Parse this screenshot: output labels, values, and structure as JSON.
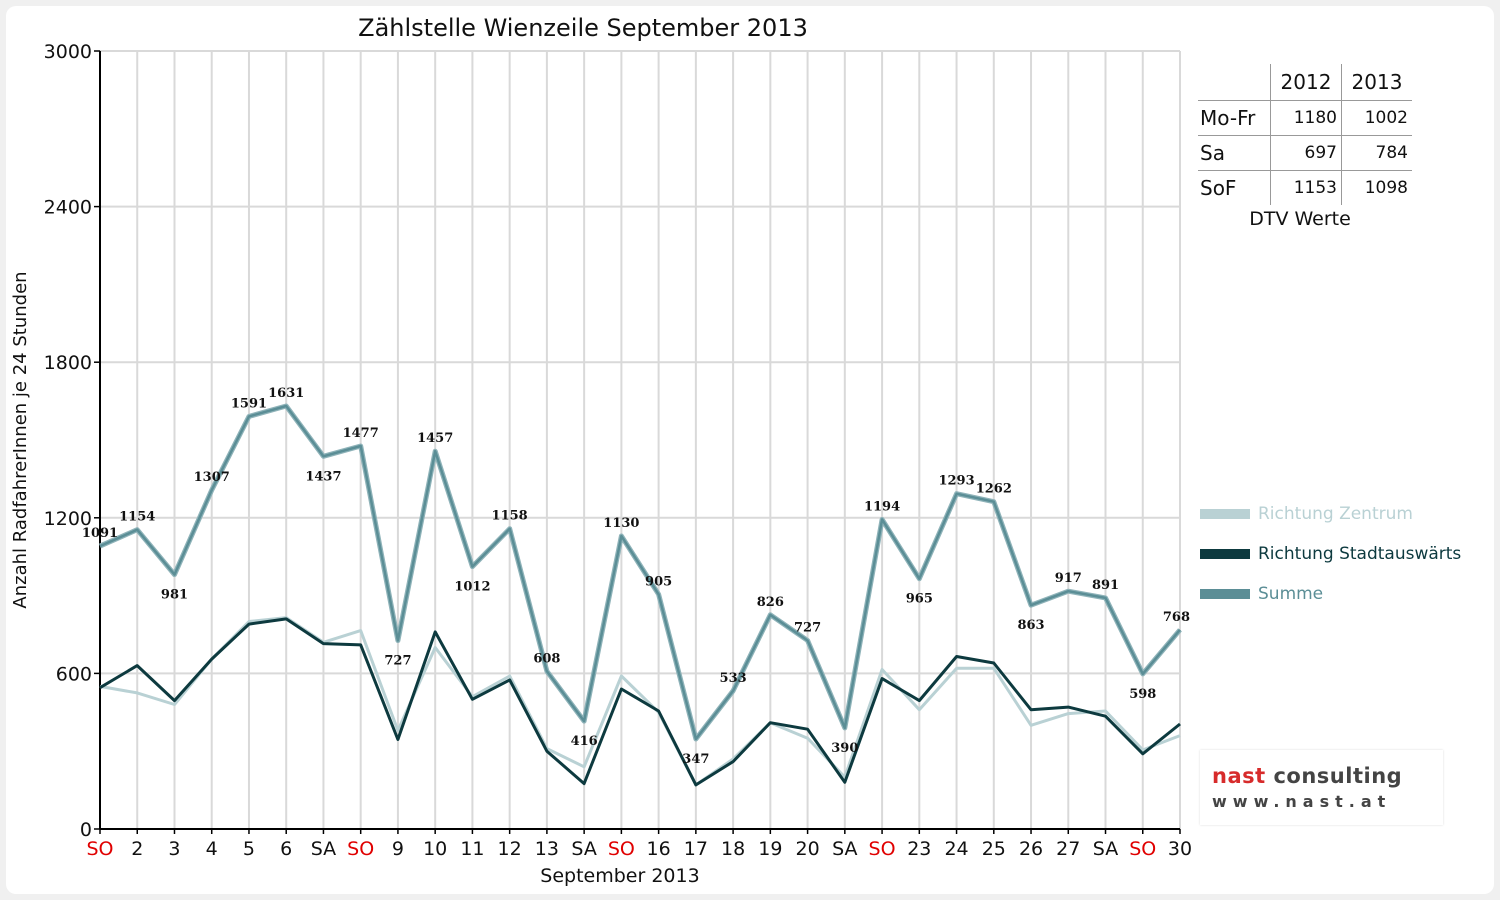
{
  "chart_data": {
    "type": "line",
    "title": "Zählstelle Wienzeile September 2013",
    "xlabel": "September 2013",
    "ylabel": "Anzahl RadfahrerInnen je 24 Stunden",
    "ylim": [
      0,
      3000
    ],
    "yticks": [
      "0",
      "600",
      "1200",
      "1800",
      "2400",
      "3000"
    ],
    "categories": [
      "SO",
      "2",
      "3",
      "4",
      "5",
      "6",
      "SA",
      "SO",
      "9",
      "10",
      "11",
      "12",
      "13",
      "SA",
      "SO",
      "16",
      "17",
      "18",
      "19",
      "20",
      "SA",
      "SO",
      "23",
      "24",
      "25",
      "26",
      "27",
      "SA",
      "SO",
      "30"
    ],
    "sunday_indices": [
      0,
      7,
      14,
      21,
      28
    ],
    "grid": true,
    "legend_position": "right",
    "series": [
      {
        "name": "Richtung Zentrum",
        "color": "#b9d1d4",
        "values": [
          550,
          525,
          480,
          655,
          800,
          815,
          720,
          765,
          380,
          700,
          510,
          590,
          310,
          240,
          590,
          450,
          170,
          270,
          410,
          350,
          200,
          615,
          460,
          620,
          620,
          400,
          445,
          455,
          305,
          360
        ]
      },
      {
        "name": "Richtung Stadtauswärts",
        "color": "#0d3a3f",
        "values": [
          545,
          630,
          495,
          655,
          790,
          810,
          715,
          710,
          345,
          760,
          500,
          575,
          300,
          175,
          540,
          455,
          170,
          260,
          410,
          385,
          180,
          580,
          495,
          665,
          640,
          460,
          470,
          435,
          290,
          405
        ]
      },
      {
        "name": "Summe",
        "color": "#5b8e96",
        "values": [
          1091,
          1154,
          981,
          1307,
          1591,
          1631,
          1437,
          1477,
          727,
          1457,
          1012,
          1158,
          608,
          416,
          1130,
          905,
          347,
          533,
          826,
          727,
          390,
          1194,
          965,
          1293,
          1262,
          863,
          917,
          891,
          598,
          768
        ],
        "labels": [
          "1091",
          "1154",
          "981",
          "1307",
          "1591",
          "1631",
          "1437",
          "1477",
          "727",
          "1457",
          "1012",
          "1158",
          "608",
          "416",
          "1130",
          "905",
          "347",
          "533",
          "826",
          "727",
          "390",
          "1194",
          "965",
          "1293",
          "1262",
          "863",
          "917",
          "891",
          "598",
          "768"
        ]
      }
    ]
  },
  "dtv_table": {
    "years": [
      "2012",
      "2013"
    ],
    "rows": [
      {
        "label": "Mo-Fr",
        "v2012": "1180",
        "v2013": "1002"
      },
      {
        "label": "Sa",
        "v2012": "697",
        "v2013": "784"
      },
      {
        "label": "SoF",
        "v2012": "1153",
        "v2013": "1098"
      }
    ],
    "caption": "DTV Werte"
  },
  "legend": {
    "items": [
      {
        "label": "Richtung Zentrum",
        "color": "#b9d1d4"
      },
      {
        "label": "Richtung Stadtauswärts",
        "color": "#0d3a3f"
      },
      {
        "label": "Summe",
        "color": "#5b8e96"
      }
    ]
  },
  "logo": {
    "word1": "nast",
    "word2": " consulting",
    "url": "www.nast.at"
  },
  "colors": {
    "sunday": "#e00000",
    "grid": "#d9d9d9",
    "axis": "#000000"
  }
}
